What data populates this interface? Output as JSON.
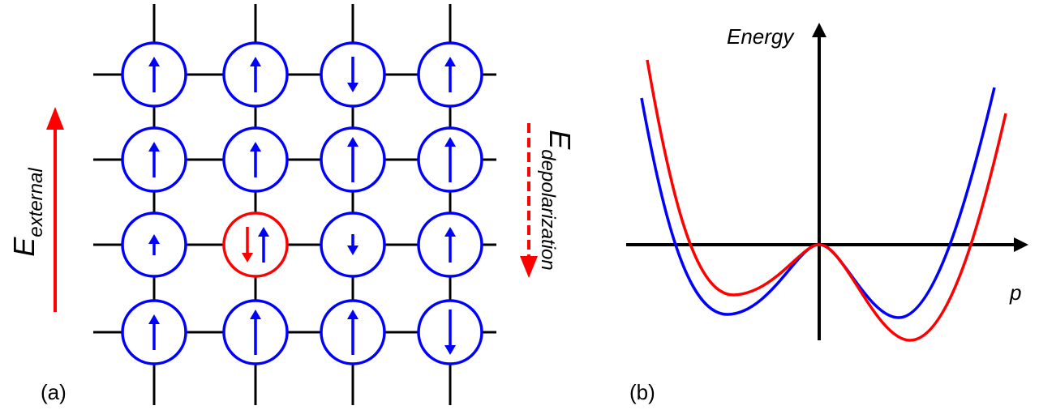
{
  "panel_a": {
    "label": "(a)",
    "external_field": {
      "symbol": "E",
      "subscript": "external",
      "direction": "up",
      "color": "#ff0000"
    },
    "depolarization_field": {
      "symbol": "E",
      "subscript": "depolarization",
      "direction": "down",
      "style": "dashed",
      "color": "#ff0000"
    },
    "lattice": {
      "rows": 4,
      "cols": 4,
      "cells": [
        [
          {
            "dir": "up",
            "size": "medium"
          },
          {
            "dir": "up",
            "size": "medium"
          },
          {
            "dir": "down",
            "size": "medium"
          },
          {
            "dir": "up",
            "size": "medium"
          }
        ],
        [
          {
            "dir": "up",
            "size": "medium"
          },
          {
            "dir": "up",
            "size": "medium"
          },
          {
            "dir": "up",
            "size": "large"
          },
          {
            "dir": "up",
            "size": "large"
          }
        ],
        [
          {
            "dir": "up",
            "size": "small"
          },
          {
            "dir": "both",
            "size": "medium",
            "highlight": true
          },
          {
            "dir": "down",
            "size": "small"
          },
          {
            "dir": "up",
            "size": "medium"
          }
        ],
        [
          {
            "dir": "up",
            "size": "medium"
          },
          {
            "dir": "up",
            "size": "large"
          },
          {
            "dir": "up",
            "size": "large"
          },
          {
            "dir": "down",
            "size": "large"
          }
        ]
      ]
    },
    "colors": {
      "dipole": "#0000ff",
      "highlight": "#ff0000",
      "grid": "#000000"
    }
  },
  "panel_b": {
    "label": "(b)",
    "y_axis_label": "Energy",
    "x_axis_label": "p",
    "curves": [
      {
        "color": "#0000ff",
        "shape": "double-well",
        "left_well": "deeper",
        "right_well": "shallower"
      },
      {
        "color": "#ff0000",
        "shape": "double-well",
        "left_well": "shallower",
        "right_well": "deeper"
      }
    ]
  }
}
